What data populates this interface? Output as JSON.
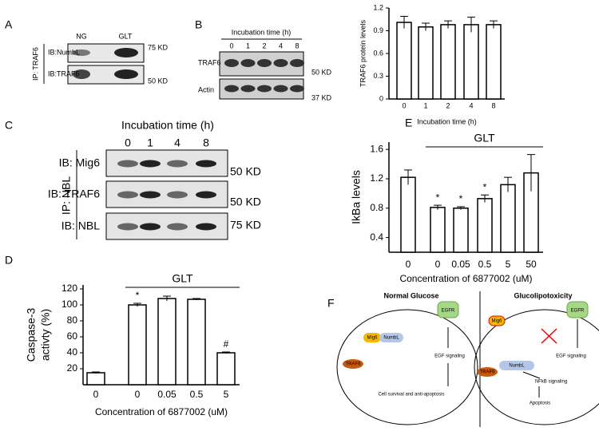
{
  "panel_labels": [
    "A",
    "B",
    "C",
    "D",
    "E",
    "F"
  ],
  "blot_a": {
    "lanes": [
      "NG",
      "GLT"
    ],
    "rows": [
      "IB:NumbL",
      "IB:TRAF6"
    ],
    "ip": "IP: TRAF6",
    "markers": [
      "75 KD",
      "50 KD"
    ]
  },
  "blot_b": {
    "heading": "Incubation time (h)",
    "lanes": [
      "0",
      "1",
      "2",
      "4",
      "8"
    ],
    "rows": [
      "TRAF6",
      "Actin"
    ],
    "markers": [
      "50 KD",
      "37 KD"
    ]
  },
  "blot_c": {
    "heading": "Incubation time (h)",
    "lanes": [
      "0",
      "1",
      "4",
      "8"
    ],
    "rows": [
      "IB: Mig6",
      "IB: TRAF6",
      "IB: NBL"
    ],
    "ip": "IP: NBL",
    "markers": [
      "50 KD",
      "50 KD",
      "75 KD"
    ]
  },
  "chart_data": [
    {
      "type": "bar",
      "ylabel": [
        "TRAF6 protein levels"
      ],
      "xlabel": "Incubation time (h)",
      "categories": [
        "0",
        "1",
        "2",
        "4",
        "8"
      ],
      "values": [
        1.01,
        0.95,
        0.98,
        0.98,
        0.98
      ],
      "errors": [
        0.08,
        0.05,
        0.05,
        0.1,
        0.05
      ],
      "color": "#ffffff",
      "ylim": [
        0,
        1.2
      ],
      "yticks": [
        0,
        0.3,
        0.6,
        0.9,
        1.2
      ]
    },
    {
      "type": "bar",
      "ylabel": [
        "Caspase-3",
        "activty (%)"
      ],
      "xlabel": "Concentration of 6877002 (uM)",
      "categories": [
        "0",
        "0",
        "0.05",
        "0.5",
        "5"
      ],
      "values": [
        15,
        100,
        108,
        107,
        40
      ],
      "errors": [
        1,
        2,
        3,
        1,
        1
      ],
      "significance": [
        null,
        "*",
        null,
        null,
        "#"
      ],
      "group_label": "GLT",
      "color": "#ffffff",
      "ylim": [
        0,
        125
      ],
      "yticks": [
        20,
        40,
        60,
        80,
        100,
        120
      ]
    },
    {
      "type": "bar",
      "ylabel": [
        "IkBa levels"
      ],
      "xlabel": "Concentration of 6877002 (uM)",
      "categories": [
        "0",
        "0",
        "0.05",
        "0.5",
        "5",
        "50"
      ],
      "values": [
        1.22,
        0.81,
        0.8,
        0.93,
        1.12,
        1.28
      ],
      "errors": [
        0.1,
        0.03,
        0.02,
        0.05,
        0.1,
        0.25
      ],
      "significance": [
        null,
        "*",
        "*",
        "*",
        null,
        null
      ],
      "group_label": "GLT",
      "color": "#ffffff",
      "ylim": [
        0.2,
        1.7
      ],
      "yticks": [
        0.4,
        0.8,
        1.2,
        1.6
      ]
    }
  ],
  "diagram": {
    "normal_title": "Normal Glucose",
    "glt_title": "Glucolipotoxicity",
    "egfr": "EGFR",
    "mig6": "Mig6",
    "numbl": "NumbL",
    "traf6": "TRAF6",
    "egf_signaling": "EGF signaling",
    "survival": "Cell survival and anti-apoptosis",
    "nfkb": "NFkB signaling",
    "apoptosis": "Apoptosis"
  }
}
